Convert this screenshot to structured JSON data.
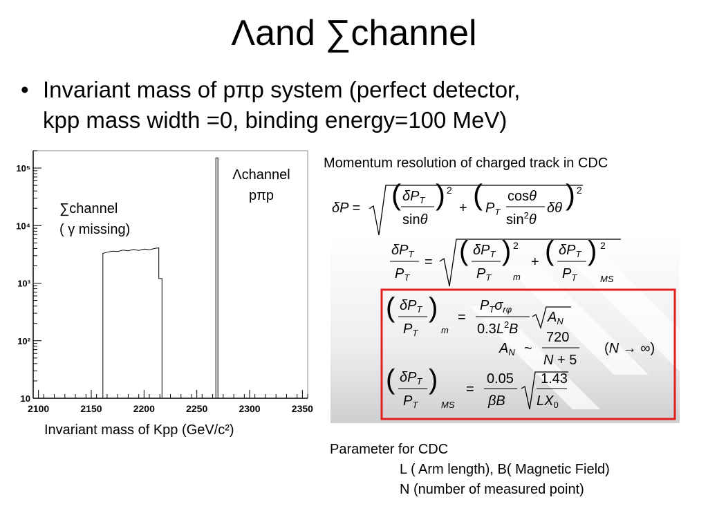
{
  "slide": {
    "title": "Λand ∑channel",
    "bullet": "•",
    "bullet_line1": "Invariant mass of pπp system (perfect detector,",
    "bullet_line2": "kpp mass width =0, binding energy=100 MeV)"
  },
  "chart_data": {
    "type": "line",
    "xlabel": "Invariant mass of Kpp (GeV/c²)",
    "xlim": [
      2095,
      2355
    ],
    "ylim": [
      10,
      200000
    ],
    "yscale": "log",
    "grid": false,
    "xticks": [
      "2100",
      "2150",
      "2200",
      "2250",
      "2300",
      "2350"
    ],
    "xtick_values": [
      2100,
      2150,
      2200,
      2250,
      2300,
      2350
    ],
    "yticks": [
      "10",
      "10²",
      "10³",
      "10⁴",
      "10⁵"
    ],
    "ytick_values": [
      10,
      100,
      1000,
      10000,
      100000
    ],
    "annotations": [
      {
        "line1": "∑channel",
        "line2": "( γ missing)"
      },
      {
        "line1": "Λchannel",
        "line2": "pπp"
      }
    ],
    "series": [
      {
        "x": [
          2095,
          2161,
          2161,
          2165,
          2170,
          2175,
          2180,
          2185,
          2190,
          2195,
          2200,
          2205,
          2210,
          2214,
          2214,
          2217,
          2217,
          2268,
          2268,
          2270,
          2270,
          2355
        ],
        "y": [
          10,
          10,
          3300,
          3450,
          3600,
          3550,
          3750,
          3650,
          3850,
          3700,
          3900,
          3800,
          4000,
          4100,
          1200,
          1200,
          10,
          10,
          150000,
          150000,
          10,
          10
        ]
      }
    ]
  },
  "equations": {
    "heading": "Momentum resolution of charged track in CDC",
    "deltaP": "δP = √( (δP_T / sinθ)² + (P_T · cosθ/sin²θ · δθ)² )",
    "deltaPT": "δP_T/P_T = √( (δP_T/P_T)_m² + (δP_T/P_T)_MS² )",
    "measured": "(δP_T/P_T)_m = P_T σ_rφ / (0.3 L² B) · √A_N",
    "AN": "A_N ~ 720/(N+5)   (N → ∞)",
    "ms": "(δP_T/P_T)_MS = 0.05/(βB) · √(1.43/(L X_0))",
    "highlight_color": "#e02020"
  },
  "params": {
    "heading": "Parameter for CDC",
    "line1": "L ( Arm length), B( Magnetic Field)",
    "line2": "N (number of measured point)"
  }
}
